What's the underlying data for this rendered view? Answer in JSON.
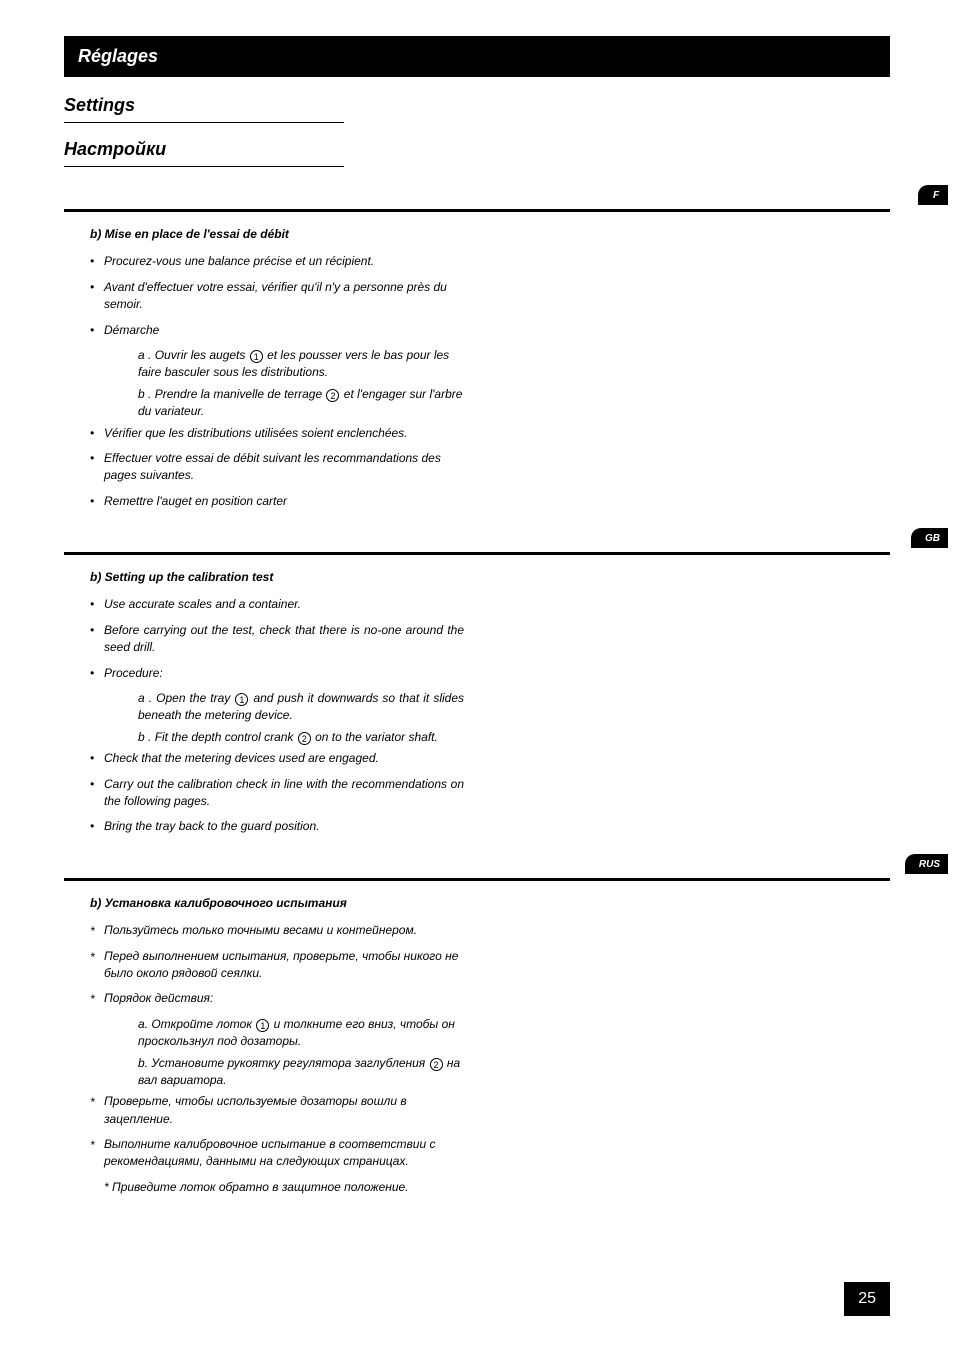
{
  "header": {
    "title_fr": "Réglages",
    "title_en": "Settings",
    "title_ru": "Настройки"
  },
  "page_number": "25",
  "sections": [
    {
      "tab": "F",
      "title": "b) Mise en place de l'essai de débit",
      "bullet_style": "b",
      "items": [
        {
          "text": "Procurez-vous une balance précise et un récipient."
        },
        {
          "text": "Avant d'effectuer votre essai, vérifier qu'il n'y a personne près du semoir."
        },
        {
          "text": "Démarche",
          "sub": [
            {
              "prefix": "a .",
              "pre": "Ouvrir les augets",
              "num": "1",
              "post": "et les pousser vers le bas pour les faire basculer sous les distributions."
            },
            {
              "prefix": "b .",
              "pre": "Prendre la manivelle de terrage",
              "num": "2",
              "post": "et l'engager sur l'arbre du variateur."
            }
          ]
        },
        {
          "text": "Vérifier que les distributions utilisées soient enclenchées."
        },
        {
          "text": "Effectuer votre essai de débit suivant les recommandations des pages suivantes."
        },
        {
          "text": "Remettre l'auget en position carter"
        }
      ]
    },
    {
      "tab": "GB",
      "title": "b) Setting up the calibration test",
      "bullet_style": "b",
      "justify": true,
      "items": [
        {
          "text": "Use accurate scales and a container."
        },
        {
          "text": "Before carrying out the test, check that there is no-one around the seed drill."
        },
        {
          "text": "Procedure:",
          "sub": [
            {
              "prefix": "a .",
              "pre": "Open the tray",
              "num": "1",
              "post": "and push it downwards so that it slides beneath the metering device."
            },
            {
              "prefix": "b .",
              "pre": "Fit the depth control crank",
              "num": "2",
              "post": "on to the variator shaft."
            }
          ]
        },
        {
          "text": "Check that the metering devices used are engaged."
        },
        {
          "text": "Carry out the calibration check in line with the recommendations on the following pages."
        },
        {
          "text": "Bring the tray back to the guard position."
        }
      ]
    },
    {
      "tab": "RUS",
      "title": "b) Установка калибровочного испытания",
      "bullet_style": "s",
      "items": [
        {
          "text": "Пользуйтесь только точными весами и контейнером."
        },
        {
          "text": "Перед выполнением испытания, проверьте, чтобы никого не было около рядовой сеялки."
        },
        {
          "text": "Порядок действия:",
          "sub": [
            {
              "prefix": "a.",
              "pre": "Откройте лоток",
              "num": "1",
              "post": "и толкните его вниз, чтобы он проскользнул под дозаторы."
            },
            {
              "prefix": "b.",
              "pre": "Установите рукоятку регулятора заглубления",
              "num": "2",
              "post": "на вал вариатора."
            }
          ]
        },
        {
          "text": "Проверьте, чтобы используемые дозаторы вошли в зацепление."
        },
        {
          "text": "Выполните калибровочное испытание в соответствии с рекомендациями, данными на следующих страницах."
        },
        {
          "text": "Приведите лоток обратно в защитное положение.",
          "nobullet": true
        }
      ]
    }
  ]
}
